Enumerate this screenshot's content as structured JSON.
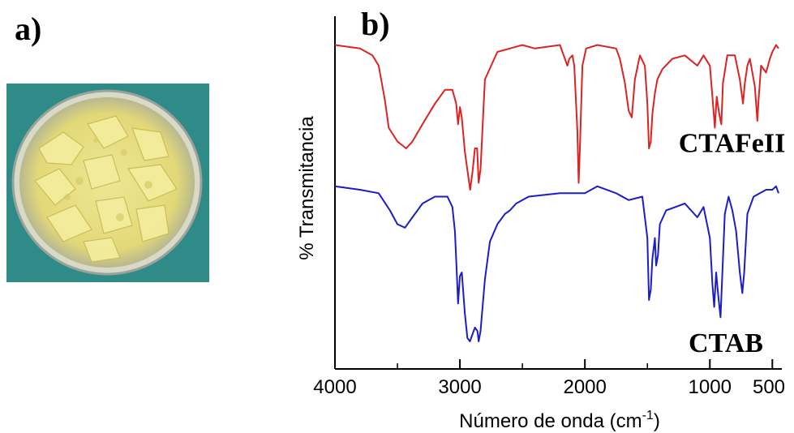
{
  "panel_labels": {
    "a": "a)",
    "b": "b)"
  },
  "photo": {
    "description_icon": "petri-dish-yellow-crystals",
    "dish_color": "#e9e38a",
    "background_color": "#2f8b87"
  },
  "chart_data": {
    "type": "line",
    "xlabel": "Número de onda (cm",
    "xlabel_superscript": "-1",
    "xlabel_suffix": ")",
    "ylabel": "% Transmitancia",
    "xlim": [
      4000,
      450
    ],
    "x_reversed": true,
    "x_ticks": [
      4000,
      3000,
      2000,
      1000,
      500
    ],
    "x_tick_labels": [
      "4000",
      "3000",
      "2000",
      "1000",
      "500"
    ],
    "ylim": [
      0,
      100
    ],
    "y_ticks_visible": false,
    "grid": false,
    "series": [
      {
        "name": "CTAFeII",
        "color": "#dd2222",
        "points": [
          [
            4000,
            94
          ],
          [
            3800,
            93
          ],
          [
            3700,
            91
          ],
          [
            3650,
            88
          ],
          [
            3600,
            78
          ],
          [
            3570,
            70
          ],
          [
            3500,
            66
          ],
          [
            3430,
            64
          ],
          [
            3380,
            66
          ],
          [
            3300,
            71
          ],
          [
            3200,
            77
          ],
          [
            3120,
            81
          ],
          [
            3060,
            81
          ],
          [
            3030,
            77
          ],
          [
            3015,
            71
          ],
          [
            3000,
            76
          ],
          [
            2985,
            73
          ],
          [
            2960,
            63
          ],
          [
            2930,
            55
          ],
          [
            2918,
            52
          ],
          [
            2900,
            57
          ],
          [
            2880,
            64
          ],
          [
            2862,
            64
          ],
          [
            2850,
            54
          ],
          [
            2835,
            58
          ],
          [
            2800,
            84
          ],
          [
            2700,
            92
          ],
          [
            2500,
            94
          ],
          [
            2400,
            93
          ],
          [
            2200,
            94
          ],
          [
            2140,
            88
          ],
          [
            2125,
            90
          ],
          [
            2100,
            91
          ],
          [
            2085,
            88
          ],
          [
            2060,
            69
          ],
          [
            2050,
            54
          ],
          [
            2040,
            64
          ],
          [
            2020,
            88
          ],
          [
            1990,
            93
          ],
          [
            1900,
            94
          ],
          [
            1750,
            93
          ],
          [
            1720,
            90
          ],
          [
            1680,
            83
          ],
          [
            1650,
            75
          ],
          [
            1625,
            73
          ],
          [
            1600,
            84
          ],
          [
            1560,
            91
          ],
          [
            1520,
            88
          ],
          [
            1500,
            77
          ],
          [
            1487,
            64
          ],
          [
            1473,
            66
          ],
          [
            1460,
            74
          ],
          [
            1440,
            80
          ],
          [
            1420,
            84
          ],
          [
            1380,
            87
          ],
          [
            1300,
            90
          ],
          [
            1200,
            91
          ],
          [
            1100,
            88
          ],
          [
            1050,
            91
          ],
          [
            1000,
            88
          ],
          [
            975,
            77
          ],
          [
            960,
            70
          ],
          [
            945,
            79
          ],
          [
            925,
            74
          ],
          [
            908,
            71
          ],
          [
            895,
            83
          ],
          [
            860,
            91
          ],
          [
            800,
            91
          ],
          [
            760,
            84
          ],
          [
            735,
            77
          ],
          [
            720,
            83
          ],
          [
            700,
            88
          ],
          [
            680,
            90
          ],
          [
            640,
            82
          ],
          [
            620,
            72
          ],
          [
            610,
            78
          ],
          [
            590,
            88
          ],
          [
            550,
            86
          ],
          [
            520,
            90
          ],
          [
            500,
            92
          ],
          [
            470,
            94
          ],
          [
            450,
            93
          ]
        ]
      },
      {
        "name": "CTAB",
        "color": "#1c1cc8",
        "points": [
          [
            4000,
            53
          ],
          [
            3800,
            52
          ],
          [
            3650,
            51
          ],
          [
            3560,
            46
          ],
          [
            3500,
            42
          ],
          [
            3440,
            41
          ],
          [
            3380,
            44
          ],
          [
            3300,
            48
          ],
          [
            3200,
            50
          ],
          [
            3100,
            50
          ],
          [
            3060,
            47
          ],
          [
            3040,
            40
          ],
          [
            3025,
            28
          ],
          [
            3015,
            19
          ],
          [
            3000,
            27
          ],
          [
            2985,
            28
          ],
          [
            2960,
            16
          ],
          [
            2940,
            9
          ],
          [
            2920,
            8
          ],
          [
            2900,
            10
          ],
          [
            2880,
            12
          ],
          [
            2860,
            11
          ],
          [
            2850,
            8
          ],
          [
            2835,
            11
          ],
          [
            2800,
            26
          ],
          [
            2760,
            37
          ],
          [
            2700,
            42
          ],
          [
            2640,
            45
          ],
          [
            2600,
            46
          ],
          [
            2550,
            48
          ],
          [
            2450,
            50
          ],
          [
            2200,
            51
          ],
          [
            2000,
            51
          ],
          [
            1900,
            53
          ],
          [
            1750,
            51
          ],
          [
            1650,
            49
          ],
          [
            1540,
            50
          ],
          [
            1500,
            38
          ],
          [
            1487,
            20
          ],
          [
            1473,
            23
          ],
          [
            1460,
            32
          ],
          [
            1440,
            38
          ],
          [
            1430,
            30
          ],
          [
            1415,
            33
          ],
          [
            1400,
            42
          ],
          [
            1350,
            46
          ],
          [
            1200,
            48
          ],
          [
            1100,
            44
          ],
          [
            1050,
            47
          ],
          [
            1000,
            38
          ],
          [
            980,
            25
          ],
          [
            965,
            18
          ],
          [
            950,
            28
          ],
          [
            935,
            22
          ],
          [
            915,
            15
          ],
          [
            900,
            28
          ],
          [
            880,
            45
          ],
          [
            850,
            50
          ],
          [
            820,
            46
          ],
          [
            790,
            40
          ],
          [
            760,
            28
          ],
          [
            740,
            22
          ],
          [
            725,
            28
          ],
          [
            700,
            45
          ],
          [
            650,
            50
          ],
          [
            550,
            52
          ],
          [
            500,
            52
          ],
          [
            470,
            53
          ],
          [
            450,
            51
          ]
        ]
      }
    ],
    "annotations": [
      {
        "text": "CTAFeII",
        "x": 1250,
        "y": 63
      },
      {
        "text": "CTAB",
        "x": 1170,
        "y": 5
      }
    ]
  }
}
